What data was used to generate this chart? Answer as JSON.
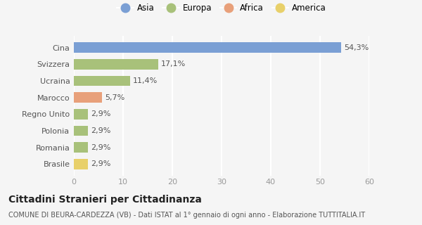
{
  "countries": [
    "Brasile",
    "Romania",
    "Polonia",
    "Regno Unito",
    "Marocco",
    "Ucraina",
    "Svizzera",
    "Cina"
  ],
  "values": [
    2.9,
    2.9,
    2.9,
    2.9,
    5.7,
    11.4,
    17.1,
    54.3
  ],
  "labels": [
    "2,9%",
    "2,9%",
    "2,9%",
    "2,9%",
    "5,7%",
    "11,4%",
    "17,1%",
    "54,3%"
  ],
  "colors": [
    "#e8d06a",
    "#a8c17a",
    "#a8c17a",
    "#a8c17a",
    "#e8a07a",
    "#a8c17a",
    "#a8c17a",
    "#7a9fd4"
  ],
  "legend_items": [
    {
      "label": "Asia",
      "color": "#7a9fd4"
    },
    {
      "label": "Europa",
      "color": "#a8c17a"
    },
    {
      "label": "Africa",
      "color": "#e8a07a"
    },
    {
      "label": "America",
      "color": "#e8d06a"
    }
  ],
  "xlim": [
    0,
    60
  ],
  "xticks": [
    0,
    10,
    20,
    30,
    40,
    50,
    60
  ],
  "title": "Cittadini Stranieri per Cittadinanza",
  "subtitle": "COMUNE DI BEURA-CARDEZZA (VB) - Dati ISTAT al 1° gennaio di ogni anno - Elaborazione TUTTITALIA.IT",
  "bg_color": "#f5f5f5",
  "grid_color": "#ffffff",
  "bar_height": 0.62,
  "title_fontsize": 10,
  "subtitle_fontsize": 7,
  "tick_fontsize": 8,
  "label_fontsize": 8
}
